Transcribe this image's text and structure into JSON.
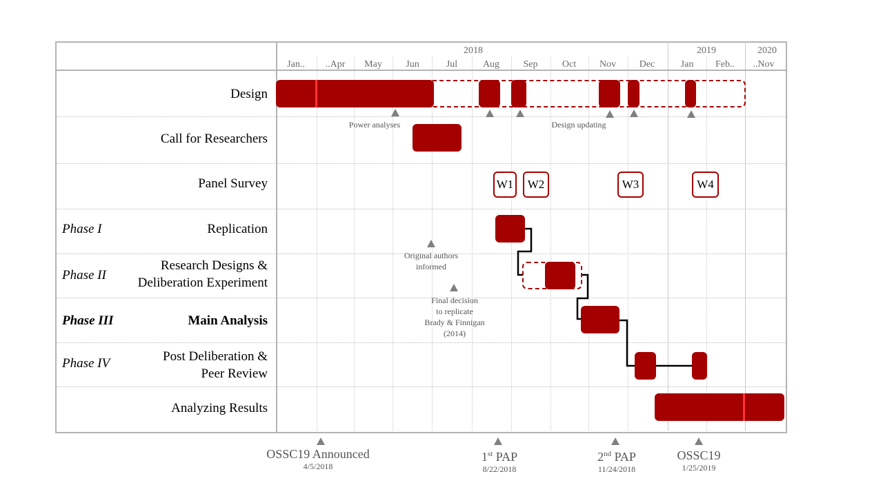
{
  "header": {
    "years": [
      "2018",
      "2019",
      "2020"
    ],
    "months": [
      "Jan..",
      "..Apr",
      "May",
      "Jun",
      "Jul",
      "Aug",
      "Sep",
      "Oct",
      "Nov",
      "Dec",
      "Jan",
      "Feb..",
      "..Nov"
    ]
  },
  "rows": {
    "design": "Design",
    "call": "Call for Researchers",
    "panel": "Panel Survey",
    "replication": "Replication",
    "research1": "Research Designs &",
    "research2": "Deliberation Experiment",
    "main": "Main Analysis",
    "post1": "Post Deliberation &",
    "post2": "Peer Review",
    "analyzing": "Analyzing  Results"
  },
  "phases": [
    "Phase I",
    "Phase II",
    "Phase III",
    "Phase IV"
  ],
  "waves": [
    "W1",
    "W2",
    "W3",
    "W4"
  ],
  "notes": {
    "power": "Power analyses",
    "design_updating": "Design updating",
    "orig1": "Original  authors",
    "orig2": "informed",
    "final1": "Final  decision",
    "final2": "to replicate",
    "final3": "Brady & Finnigan",
    "final4": "(2014)"
  },
  "milestones": [
    {
      "label": "OSSC19 Announced",
      "date": "4/5/2018"
    },
    {
      "label_main": "1",
      "label_sup": "st",
      "label_rest": " PAP",
      "date": "8/22/2018"
    },
    {
      "label_main": "2",
      "label_sup": "nd",
      "label_rest": " PAP",
      "date": "11/24/2018"
    },
    {
      "label": "OSSC19",
      "date": "1/25/2019"
    }
  ],
  "colors": {
    "bar": "#a50000",
    "grid": "#b3b3b3",
    "marker": "#808080"
  }
}
